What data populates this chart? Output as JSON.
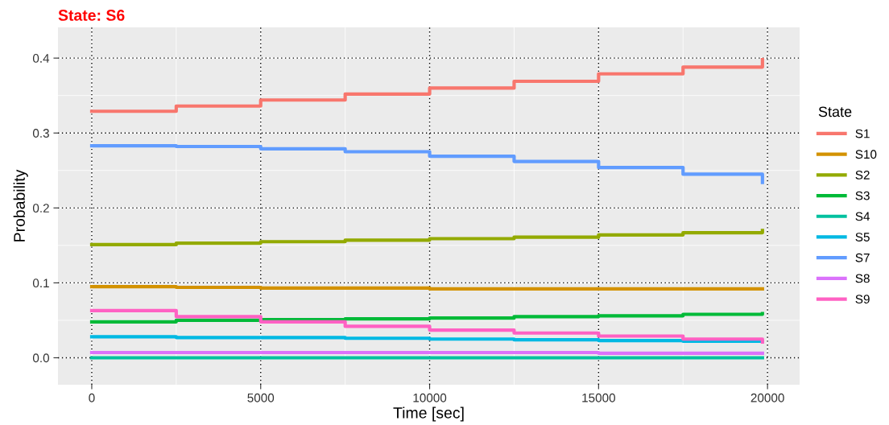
{
  "chart_data": {
    "type": "step",
    "title": "State: S6",
    "xlabel": "Time [sec]",
    "ylabel": "Probability",
    "legend_title": "State",
    "legend": "right",
    "grid": true,
    "x": [
      0,
      2500,
      5000,
      7500,
      10000,
      12500,
      15000,
      17500,
      19850
    ],
    "xlim": [
      -1000,
      20950
    ],
    "xticks": [
      0,
      5000,
      10000,
      15000,
      20000
    ],
    "ylim": [
      -0.036,
      0.441
    ],
    "yticks": [
      {
        "value": 0,
        "label": "0.0"
      },
      {
        "value": 0.1,
        "label": "0.1"
      },
      {
        "value": 0.2,
        "label": "0.2"
      },
      {
        "value": 0.3,
        "label": "0.3"
      },
      {
        "value": 0.4,
        "label": "0.4"
      }
    ],
    "series": [
      {
        "name": "S1",
        "color": "#f8766d",
        "values": [
          0.329,
          0.336,
          0.344,
          0.352,
          0.36,
          0.369,
          0.379,
          0.388,
          0.398
        ]
      },
      {
        "name": "S10",
        "color": "#d39200",
        "values": [
          0.095,
          0.094,
          0.093,
          0.093,
          0.092,
          0.092,
          0.092,
          0.092,
          0.092
        ]
      },
      {
        "name": "S2",
        "color": "#93aa00",
        "values": [
          0.151,
          0.153,
          0.155,
          0.157,
          0.159,
          0.161,
          0.164,
          0.167,
          0.17
        ]
      },
      {
        "name": "S3",
        "color": "#00ba38",
        "values": [
          0.048,
          0.05,
          0.051,
          0.052,
          0.053,
          0.055,
          0.056,
          0.058,
          0.059
        ]
      },
      {
        "name": "S4",
        "color": "#00c19f",
        "values": [
          0,
          0,
          0,
          0,
          0,
          0,
          0,
          0,
          0
        ]
      },
      {
        "name": "S5",
        "color": "#00b9e3",
        "values": [
          0.028,
          0.027,
          0.027,
          0.026,
          0.025,
          0.024,
          0.023,
          0.022,
          0.022
        ]
      },
      {
        "name": "S7",
        "color": "#619cff",
        "values": [
          0.283,
          0.282,
          0.279,
          0.275,
          0.269,
          0.262,
          0.254,
          0.245,
          0.234
        ]
      },
      {
        "name": "S8",
        "color": "#db72fb",
        "values": [
          0.007,
          0.007,
          0.007,
          0.007,
          0.007,
          0.007,
          0.006,
          0.006,
          0.006
        ]
      },
      {
        "name": "S9",
        "color": "#ff61c3",
        "values": [
          0.063,
          0.055,
          0.048,
          0.042,
          0.037,
          0.033,
          0.029,
          0.025,
          0.021
        ]
      }
    ]
  }
}
